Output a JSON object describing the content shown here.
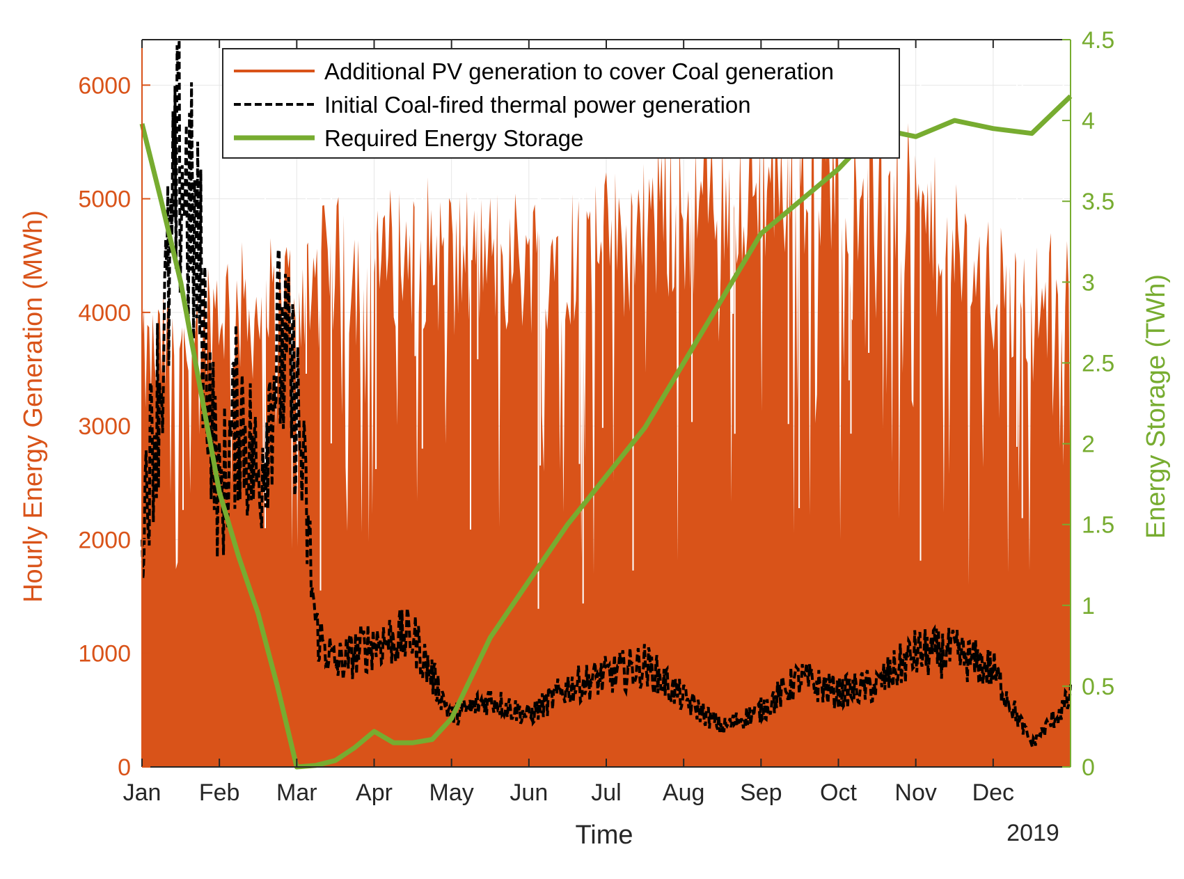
{
  "chart_data": {
    "type": "area",
    "title": "",
    "xlabel": "Time",
    "x_year_label": "2019",
    "ylabel_left": "Hourly Energy Generation (MWh)",
    "ylabel_right": "Energy Storage (TWh)",
    "xlim_months": [
      0,
      12
    ],
    "ylim_left": [
      0,
      6400
    ],
    "ylim_right": [
      0,
      4.5
    ],
    "x_ticks": [
      "Jan",
      "Feb",
      "Mar",
      "Apr",
      "May",
      "Jun",
      "Jul",
      "Aug",
      "Sep",
      "Oct",
      "Nov",
      "Dec"
    ],
    "y_left_ticks": [
      "0",
      "1000",
      "2000",
      "3000",
      "4000",
      "5000",
      "6000"
    ],
    "y_right_ticks": [
      "0",
      "0.5",
      "1",
      "1.5",
      "2",
      "2.5",
      "3",
      "3.5",
      "4",
      "4.5"
    ],
    "grid": true,
    "legend_position": "top",
    "colors": {
      "pv": "#d95319",
      "coal": "#000000",
      "storage": "#77ac30"
    },
    "series": [
      {
        "name": "Additional PV generation to cover Coal generation",
        "axis": "left",
        "style": "area",
        "x_months": [
          0,
          0.5,
          1,
          1.5,
          2,
          2.5,
          3,
          3.5,
          4,
          4.5,
          5,
          5.5,
          6,
          6.5,
          7,
          7.5,
          8,
          8.5,
          9,
          9.5,
          10,
          10.5,
          11,
          11.5,
          12
        ],
        "values": [
          3600,
          3900,
          4200,
          4100,
          4300,
          4500,
          4500,
          4700,
          4600,
          4600,
          4600,
          4700,
          4700,
          4900,
          5000,
          5200,
          5300,
          5400,
          5500,
          5300,
          5000,
          4600,
          4300,
          4100,
          4400
        ]
      },
      {
        "name": "Initial Coal-fired thermal power generation",
        "axis": "left",
        "style": "dashed",
        "x_months": [
          0,
          0.25,
          0.5,
          0.75,
          1,
          1.25,
          1.5,
          1.75,
          2,
          2.25,
          2.5,
          3,
          3.5,
          4,
          4.5,
          5,
          5.5,
          6,
          6.5,
          7,
          7.5,
          8,
          8.5,
          9,
          9.5,
          10,
          10.5,
          11,
          11.5,
          12
        ],
        "values": [
          2200,
          3500,
          5400,
          4300,
          2300,
          3200,
          2500,
          3700,
          3200,
          1200,
          900,
          1100,
          1150,
          450,
          600,
          450,
          700,
          800,
          900,
          600,
          350,
          500,
          780,
          650,
          720,
          1000,
          1000,
          850,
          200,
          600
        ]
      },
      {
        "name": "Required Energy Storage",
        "axis": "right",
        "style": "solid",
        "x_months": [
          0,
          0.25,
          0.5,
          0.75,
          1,
          1.25,
          1.5,
          1.75,
          2,
          2.25,
          2.5,
          2.75,
          3,
          3.25,
          3.5,
          3.75,
          4,
          4.5,
          5,
          5.5,
          6,
          6.5,
          7,
          7.5,
          8,
          8.5,
          9,
          9.5,
          10,
          10.5,
          11,
          11.5,
          12
        ],
        "values": [
          3.98,
          3.5,
          3.0,
          2.35,
          1.7,
          1.3,
          0.95,
          0.5,
          0.0,
          0.01,
          0.04,
          0.12,
          0.22,
          0.15,
          0.15,
          0.17,
          0.3,
          0.8,
          1.15,
          1.5,
          1.8,
          2.1,
          2.5,
          2.9,
          3.3,
          3.5,
          3.7,
          3.95,
          3.9,
          4.0,
          3.95,
          3.92,
          4.15
        ]
      }
    ]
  }
}
